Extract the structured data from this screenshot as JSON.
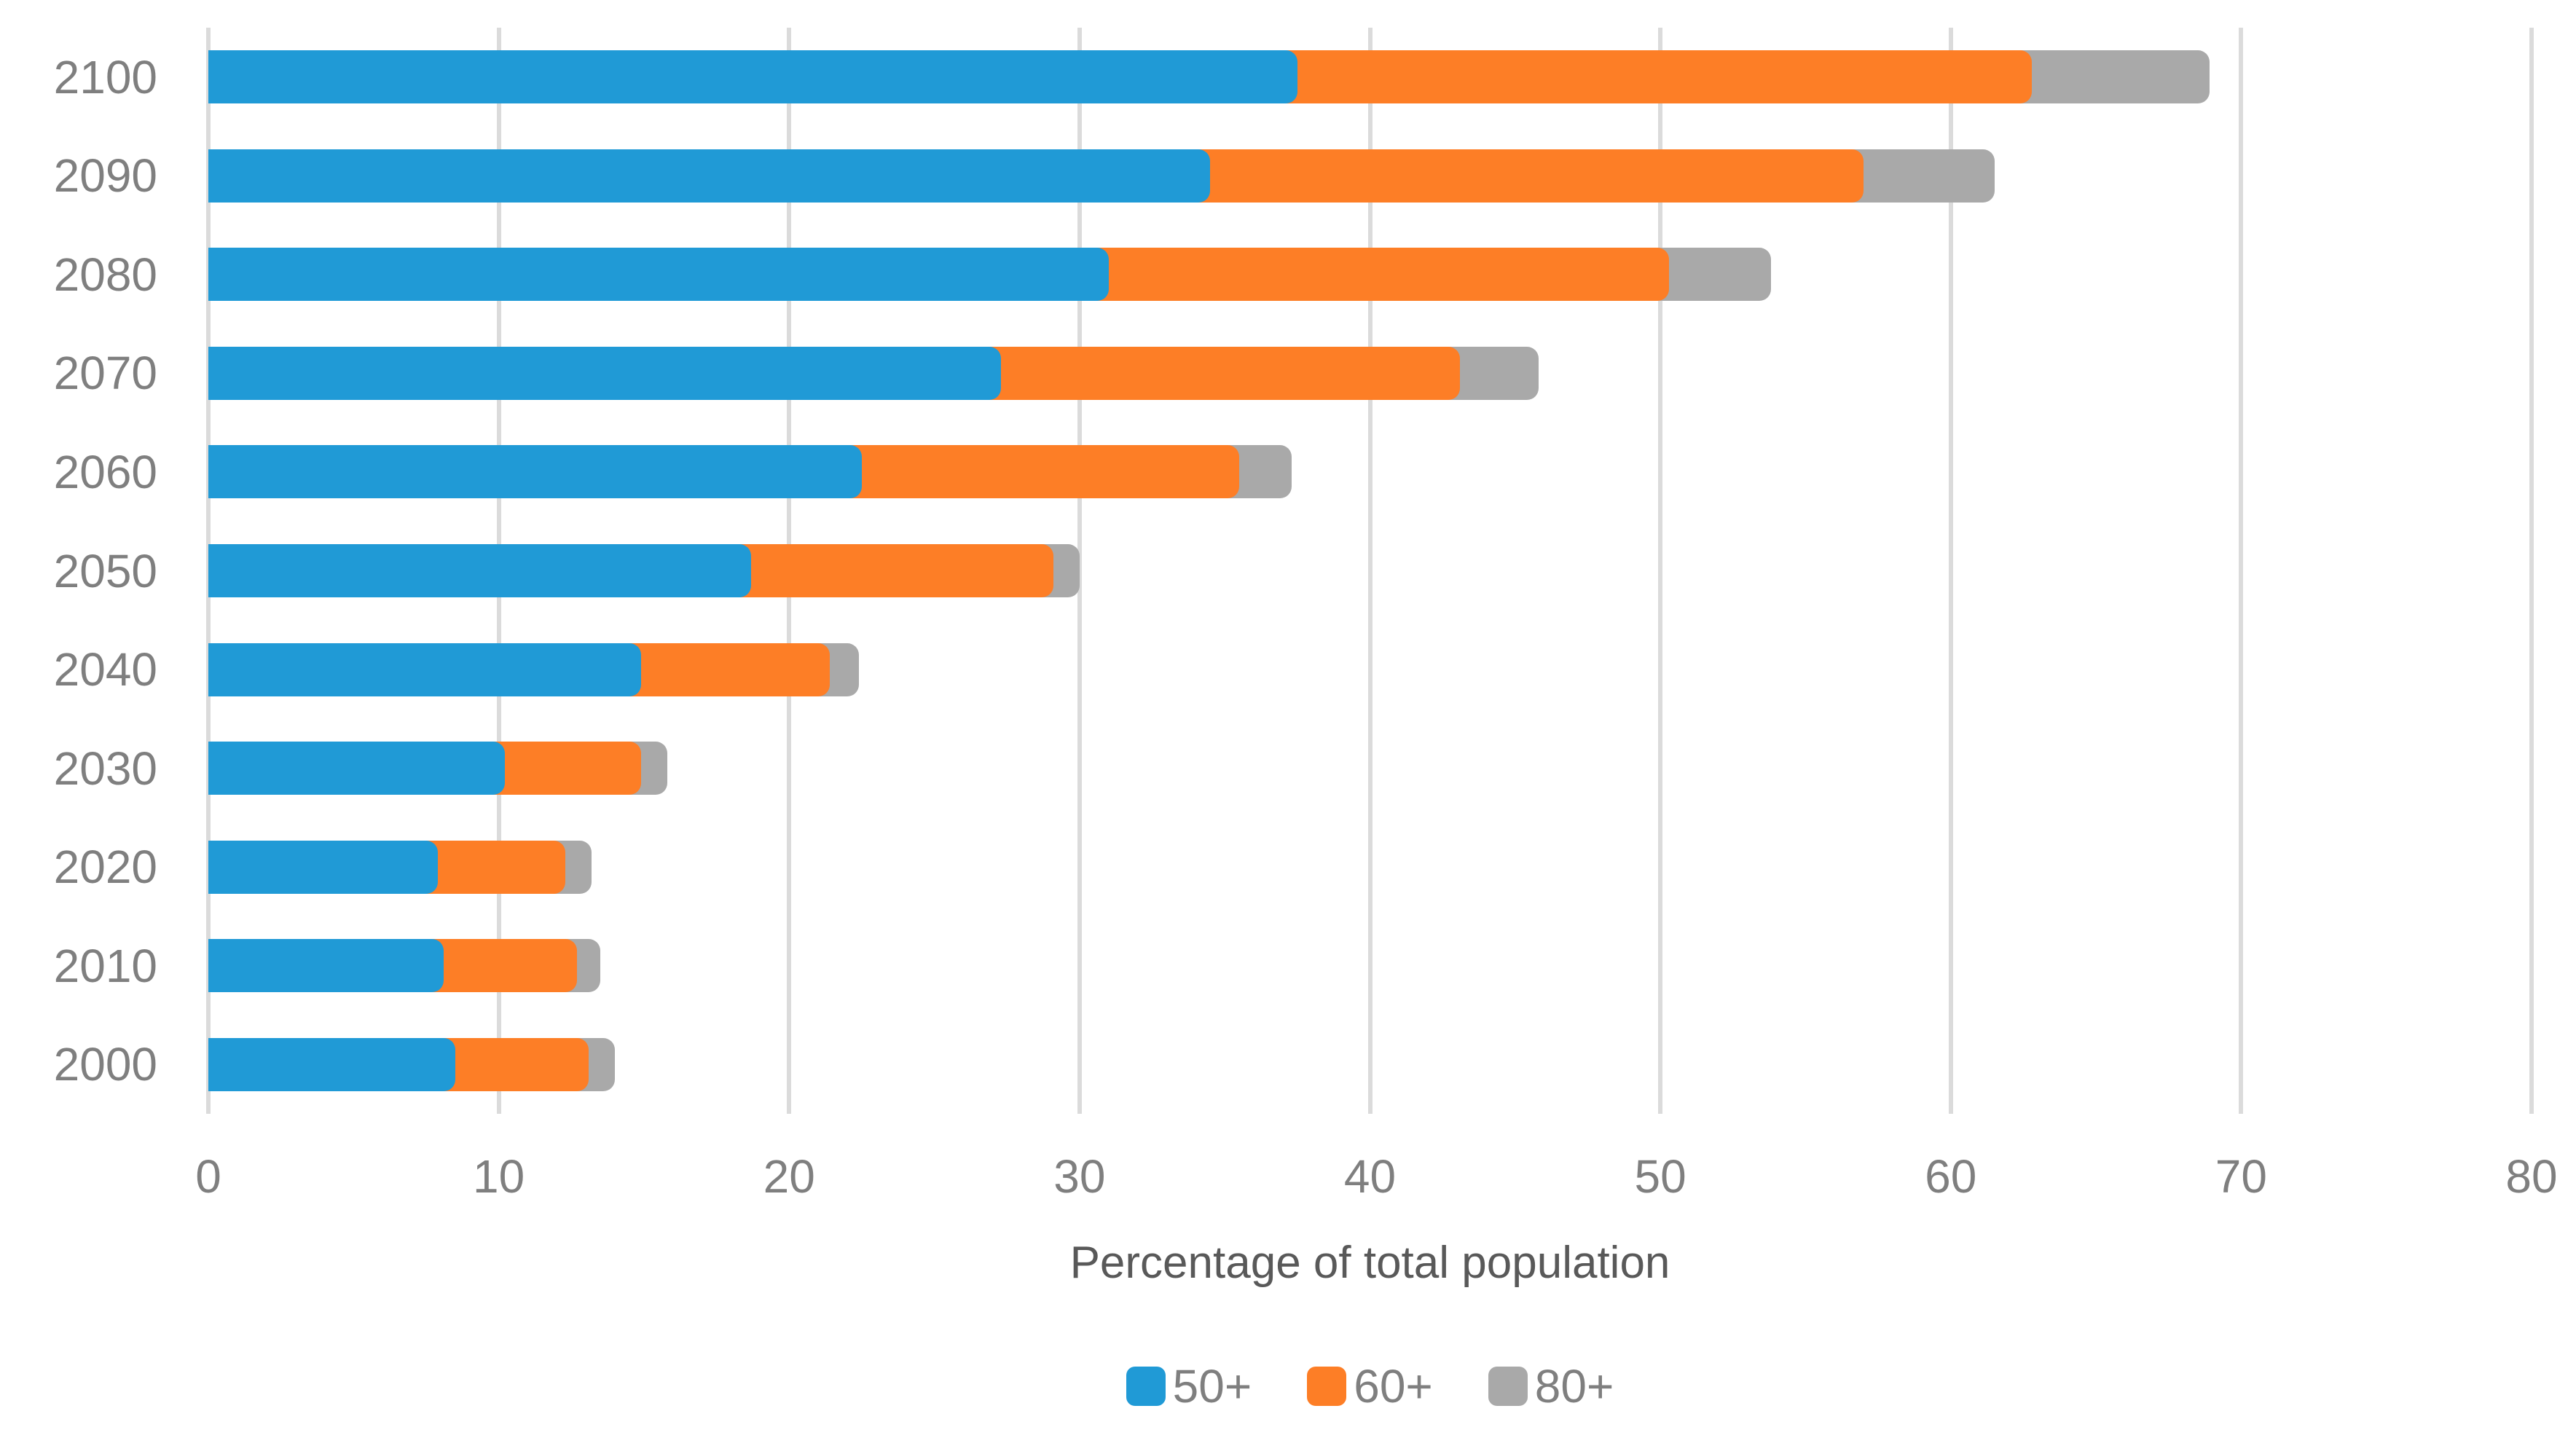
{
  "chart_data": {
    "type": "bar",
    "orientation": "horizontal",
    "stacked": true,
    "title": "",
    "xlabel": "Percentage of total population",
    "ylabel": "",
    "categories": [
      "2100",
      "2090",
      "2080",
      "2070",
      "2060",
      "2050",
      "2040",
      "2030",
      "2020",
      "2010",
      "2000"
    ],
    "series": [
      {
        "name": "50+",
        "color": "#209AD6",
        "values": [
          37.5,
          34.5,
          31.0,
          27.3,
          22.5,
          18.7,
          14.9,
          10.2,
          7.9,
          8.1,
          8.5
        ]
      },
      {
        "name": "60+",
        "color": "#FD7E26",
        "values": [
          25.3,
          22.5,
          19.3,
          15.8,
          13.0,
          10.4,
          6.5,
          4.7,
          4.4,
          4.6,
          4.6
        ]
      },
      {
        "name": "80+",
        "color": "#A9A9A9",
        "values": [
          6.1,
          4.5,
          3.5,
          2.7,
          1.8,
          0.9,
          1.0,
          0.9,
          0.9,
          0.8,
          0.9
        ]
      }
    ],
    "totals_50plus": [
      68.9,
      61.5,
      53.8,
      45.8,
      37.3,
      30.0,
      22.4,
      15.8,
      13.2,
      13.5,
      14.0
    ],
    "x_ticks": [
      0,
      10,
      20,
      30,
      40,
      50,
      60,
      70,
      80
    ],
    "xlim": [
      0,
      80
    ],
    "grid": "vertical",
    "legend_position": "bottom"
  },
  "colors": {
    "background": "#FFFFFF",
    "gridline": "#DBDBDB",
    "tick_text": "#7F7F7F",
    "axis_title_text": "#595959",
    "series_blue": "#209AD6",
    "series_orange": "#FD7E26",
    "series_gray": "#A9A9A9"
  }
}
